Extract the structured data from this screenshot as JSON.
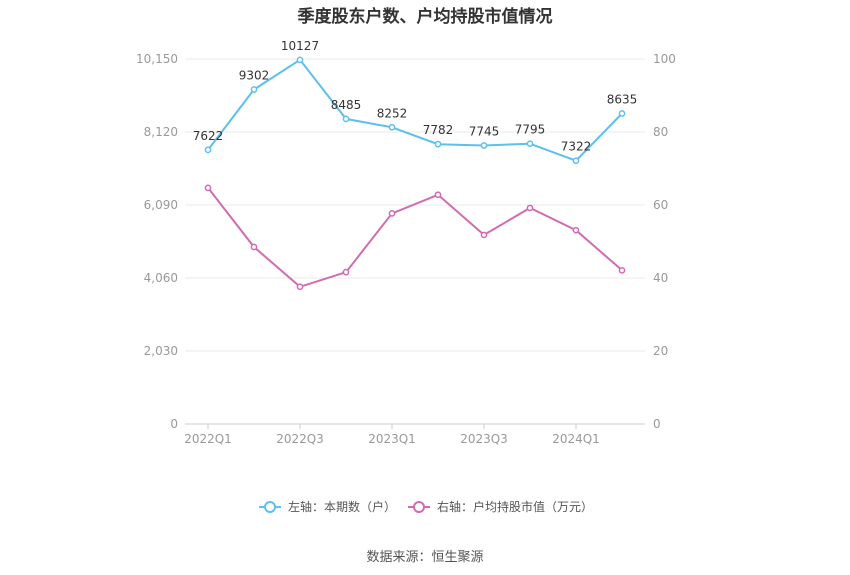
{
  "title": "季度股东户数、户均持股市值情况",
  "source": "数据来源：恒生聚源",
  "colors": {
    "left_series": "#5bc0eb",
    "right_series": "#d36bb0",
    "grid": "#e8e8e8",
    "axis": "#cccccc"
  },
  "chart_data": {
    "type": "line",
    "x": [
      "2022Q1",
      "2022Q2",
      "2022Q3",
      "2022Q4",
      "2023Q1",
      "2023Q2",
      "2023Q3",
      "2023Q4",
      "2024Q1",
      "2024Q2"
    ],
    "x_tick_labels": [
      "2022Q1",
      "",
      "2022Q3",
      "",
      "2023Q1",
      "",
      "2023Q3",
      "",
      "2024Q1",
      ""
    ],
    "y_left": {
      "ticks": [
        "0",
        "2,030",
        "4,060",
        "6,090",
        "8,120",
        "10,150"
      ],
      "range": [
        0,
        10150
      ]
    },
    "y_right": {
      "ticks": [
        "0",
        "20",
        "40",
        "60",
        "80",
        "100"
      ],
      "range": [
        0,
        100
      ]
    },
    "grid": true,
    "legend_position": "bottom",
    "series": [
      {
        "name": "左轴：本期数（户）",
        "axis": "left",
        "values": [
          7622,
          9302,
          10127,
          8485,
          8252,
          7782,
          7745,
          7795,
          7322,
          8635
        ],
        "labels": [
          "7622",
          "9302",
          "10127",
          "8485",
          "8252",
          "7782",
          "7745",
          "7795",
          "7322",
          "8635"
        ]
      },
      {
        "name": "右轴：户均持股市值（万元）",
        "axis": "right",
        "values": [
          64.7,
          48.5,
          37.6,
          41.6,
          57.7,
          62.8,
          51.8,
          59.2,
          53.1,
          42.1
        ]
      }
    ]
  }
}
